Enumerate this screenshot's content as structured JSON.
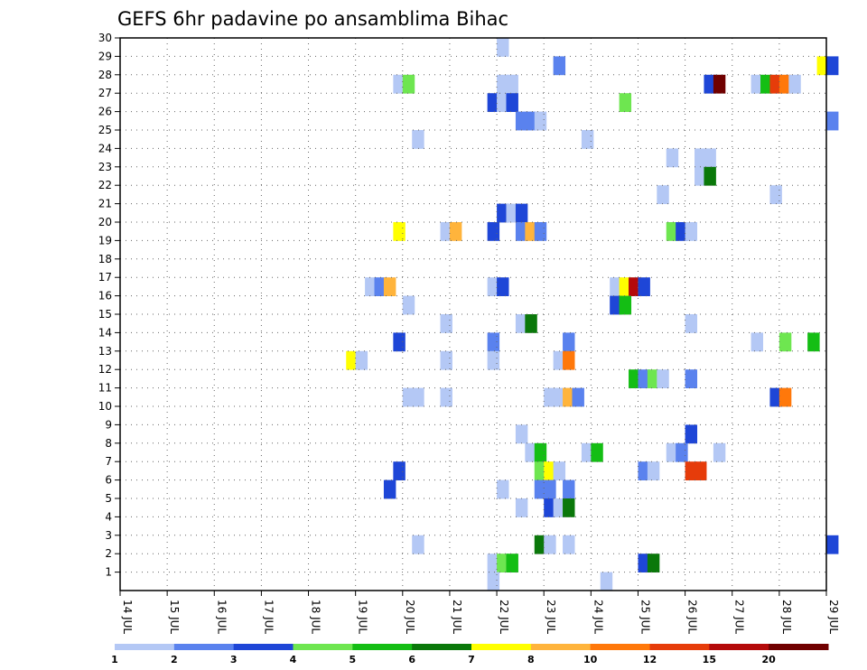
{
  "chart_data": {
    "type": "heatmap",
    "title": "GEFS 6hr padavine po ansamblima Bihac",
    "x_axis": {
      "ticks": [
        "14 JUL",
        "15 JUL",
        "16 JUL",
        "17 JUL",
        "18 JUL",
        "19 JUL",
        "20 JUL",
        "21 JUL",
        "22 JUL",
        "23 JUL",
        "24 JUL",
        "25 JUL",
        "26 JUL",
        "27 JUL",
        "28 JUL",
        "29 JUL"
      ],
      "range": [
        14,
        29
      ],
      "step_hours": 6
    },
    "y_axis": {
      "ticks": [
        "1",
        "2",
        "3",
        "4",
        "5",
        "6",
        "7",
        "8",
        "9",
        "10",
        "11",
        "12",
        "13",
        "14",
        "15",
        "16",
        "17",
        "18",
        "19",
        "20",
        "21",
        "22",
        "23",
        "24",
        "25",
        "26",
        "27",
        "28",
        "29",
        "30"
      ],
      "range": [
        0,
        30
      ]
    },
    "grid": true,
    "legend": {
      "placement": "bottom",
      "labels": [
        "1",
        "2",
        "3",
        "4",
        "5",
        "6",
        "7",
        "8",
        "10",
        "12",
        "15",
        "20"
      ],
      "colors": [
        "#b4c8f5",
        "#5a82ee",
        "#1e46d7",
        "#6ee650",
        "#14be14",
        "#0a780a",
        "#ffff00",
        "#ffb43c",
        "#ff780a",
        "#e63c0a",
        "#b40a0a",
        "#700000"
      ]
    },
    "cells": [
      [
        30,
        22.0,
        0
      ],
      [
        29,
        23.2,
        1
      ],
      [
        29,
        28.8,
        6
      ],
      [
        29,
        29.0,
        2
      ],
      [
        28,
        19.8,
        0
      ],
      [
        28,
        20.0,
        3
      ],
      [
        28,
        22.0,
        0
      ],
      [
        28,
        22.2,
        0
      ],
      [
        28,
        26.4,
        2
      ],
      [
        28,
        26.6,
        11
      ],
      [
        28,
        27.4,
        0
      ],
      [
        28,
        27.6,
        4
      ],
      [
        28,
        27.8,
        9
      ],
      [
        28,
        28.0,
        8
      ],
      [
        28,
        28.2,
        0
      ],
      [
        27,
        21.8,
        2
      ],
      [
        27,
        22.0,
        0
      ],
      [
        27,
        22.2,
        2
      ],
      [
        27,
        24.6,
        3
      ],
      [
        26,
        22.4,
        1
      ],
      [
        26,
        22.6,
        1
      ],
      [
        26,
        22.8,
        0
      ],
      [
        26,
        29.0,
        1
      ],
      [
        25,
        20.2,
        0
      ],
      [
        25,
        23.8,
        0
      ],
      [
        24,
        25.6,
        0
      ],
      [
        24,
        26.2,
        0
      ],
      [
        24,
        26.4,
        0
      ],
      [
        23,
        26.2,
        0
      ],
      [
        23,
        26.4,
        5
      ],
      [
        22,
        25.4,
        0
      ],
      [
        22,
        27.8,
        0
      ],
      [
        21,
        22.0,
        2
      ],
      [
        21,
        22.2,
        0
      ],
      [
        21,
        22.4,
        2
      ],
      [
        20,
        19.8,
        6
      ],
      [
        20,
        20.8,
        0
      ],
      [
        20,
        21.0,
        7
      ],
      [
        20,
        21.8,
        2
      ],
      [
        20,
        22.4,
        1
      ],
      [
        20,
        22.6,
        7
      ],
      [
        20,
        22.8,
        1
      ],
      [
        20,
        25.6,
        3
      ],
      [
        20,
        25.8,
        2
      ],
      [
        20,
        26.0,
        0
      ],
      [
        17,
        19.2,
        0
      ],
      [
        17,
        19.4,
        1
      ],
      [
        17,
        19.6,
        7
      ],
      [
        17,
        21.8,
        0
      ],
      [
        17,
        22.0,
        2
      ],
      [
        17,
        24.4,
        0
      ],
      [
        17,
        24.6,
        6
      ],
      [
        17,
        24.8,
        10
      ],
      [
        17,
        25.0,
        2
      ],
      [
        16,
        20.0,
        0
      ],
      [
        16,
        24.4,
        2
      ],
      [
        16,
        24.6,
        4
      ],
      [
        15,
        20.8,
        0
      ],
      [
        15,
        22.4,
        0
      ],
      [
        15,
        22.6,
        5
      ],
      [
        15,
        26.0,
        0
      ],
      [
        14,
        19.8,
        2
      ],
      [
        14,
        21.8,
        1
      ],
      [
        14,
        23.4,
        1
      ],
      [
        14,
        27.4,
        0
      ],
      [
        14,
        28.0,
        3
      ],
      [
        14,
        28.6,
        4
      ],
      [
        13,
        18.8,
        6
      ],
      [
        13,
        19.0,
        0
      ],
      [
        13,
        20.8,
        0
      ],
      [
        13,
        21.8,
        0
      ],
      [
        13,
        23.2,
        0
      ],
      [
        13,
        23.4,
        8
      ],
      [
        12,
        24.8,
        4
      ],
      [
        12,
        25.0,
        1
      ],
      [
        12,
        25.2,
        3
      ],
      [
        12,
        25.4,
        0
      ],
      [
        12,
        26.0,
        1
      ],
      [
        11,
        20.0,
        0
      ],
      [
        11,
        20.2,
        0
      ],
      [
        11,
        20.8,
        0
      ],
      [
        11,
        23.0,
        0
      ],
      [
        11,
        23.2,
        0
      ],
      [
        11,
        23.4,
        7
      ],
      [
        11,
        23.6,
        1
      ],
      [
        11,
        27.8,
        2
      ],
      [
        11,
        28.0,
        8
      ],
      [
        9,
        22.4,
        0
      ],
      [
        9,
        26.0,
        2
      ],
      [
        8,
        22.6,
        0
      ],
      [
        8,
        22.8,
        4
      ],
      [
        8,
        23.8,
        0
      ],
      [
        8,
        24.0,
        4
      ],
      [
        8,
        25.6,
        0
      ],
      [
        8,
        25.8,
        1
      ],
      [
        8,
        26.6,
        0
      ],
      [
        7,
        19.8,
        2
      ],
      [
        7,
        22.8,
        3
      ],
      [
        7,
        23.0,
        6
      ],
      [
        7,
        23.2,
        0
      ],
      [
        7,
        25.0,
        1
      ],
      [
        7,
        25.2,
        0
      ],
      [
        7,
        26.0,
        9
      ],
      [
        7,
        26.2,
        9
      ],
      [
        6,
        19.6,
        2
      ],
      [
        6,
        22.0,
        0
      ],
      [
        6,
        22.8,
        1
      ],
      [
        6,
        23.0,
        1
      ],
      [
        6,
        23.4,
        1
      ],
      [
        5,
        22.4,
        0
      ],
      [
        5,
        23.0,
        2
      ],
      [
        5,
        23.2,
        0
      ],
      [
        5,
        23.4,
        5
      ],
      [
        3,
        20.2,
        0
      ],
      [
        3,
        22.8,
        5
      ],
      [
        3,
        23.0,
        0
      ],
      [
        3,
        23.4,
        0
      ],
      [
        3,
        29.0,
        2
      ],
      [
        2,
        21.8,
        0
      ],
      [
        2,
        22.0,
        3
      ],
      [
        2,
        22.2,
        4
      ],
      [
        2,
        25.0,
        2
      ],
      [
        2,
        25.2,
        5
      ],
      [
        1,
        21.8,
        0
      ],
      [
        1,
        24.2,
        0
      ]
    ]
  }
}
